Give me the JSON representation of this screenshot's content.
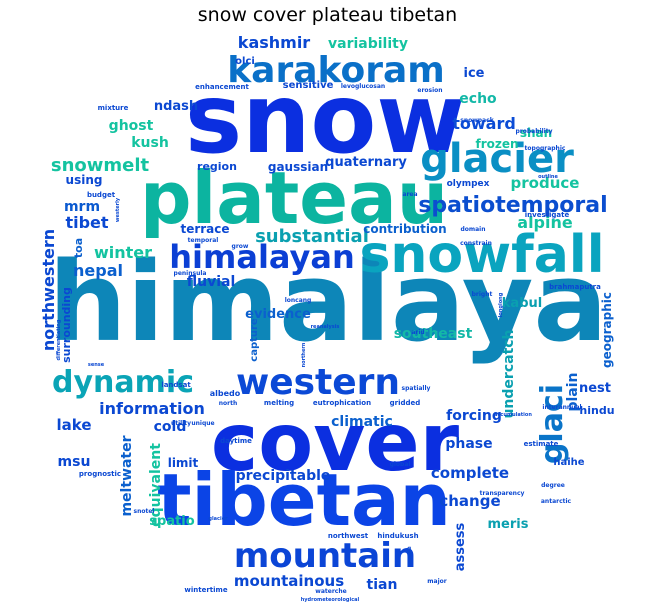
{
  "title": "snow cover plateau tibetan",
  "colors": {
    "blue": "#0b2fe0",
    "teal": "#0fa0a8",
    "green": "#17c79a",
    "mid": "#1a7fcc",
    "light": "#1bd690"
  },
  "words": [
    {
      "text": "snow",
      "color": "#0b2fe0"
    },
    {
      "text": "himalaya",
      "color": "#0d86b8"
    },
    {
      "text": "plateau",
      "color": "#0cb4a0"
    },
    {
      "text": "cover",
      "color": "#0b2fe0"
    },
    {
      "text": "tibetan",
      "color": "#0b44e6"
    },
    {
      "text": "snowfall",
      "color": "#0aa4bf"
    },
    {
      "text": "glacier",
      "color": "#0a8fc4"
    },
    {
      "text": "karakoram",
      "color": "#0a70c8"
    },
    {
      "text": "western",
      "color": "#0b49d6"
    },
    {
      "text": "himalayan",
      "color": "#0b3fd4"
    },
    {
      "text": "dynamic",
      "color": "#0aa4b6"
    },
    {
      "text": "mountain",
      "color": "#0b45d6"
    },
    {
      "text": "glaci",
      "color": "#0a74c8"
    },
    {
      "text": "spatiotemporal",
      "color": "#0b4ecf"
    },
    {
      "text": "substantial",
      "color": "#0aa0b0"
    },
    {
      "text": "kashmir",
      "color": "#0b48d2"
    },
    {
      "text": "variability",
      "color": "#14c3a0"
    },
    {
      "text": "snowmelt",
      "color": "#14c3a0"
    },
    {
      "text": "toward",
      "color": "#0b4cd6"
    },
    {
      "text": "information",
      "color": "#0b48d2"
    },
    {
      "text": "southeast",
      "color": "#13b8a7"
    },
    {
      "text": "alpine",
      "color": "#14c3a0"
    },
    {
      "text": "produce",
      "color": "#14c3a0"
    },
    {
      "text": "nepal",
      "color": "#0b60ce"
    },
    {
      "text": "fluvial",
      "color": "#0b48d2"
    },
    {
      "text": "winter",
      "color": "#14c3a0"
    },
    {
      "text": "tibet",
      "color": "#0b48d2"
    },
    {
      "text": "mrm",
      "color": "#0b5ad0"
    },
    {
      "text": "using",
      "color": "#0b48d2"
    },
    {
      "text": "ghost",
      "color": "#14c3a0"
    },
    {
      "text": "kush",
      "color": "#14c3a0"
    },
    {
      "text": "ndash",
      "color": "#0b48d2"
    },
    {
      "text": "echo",
      "color": "#13b8a7"
    },
    {
      "text": "ice",
      "color": "#0b48d2"
    },
    {
      "text": "frozen",
      "color": "#14c3a0"
    },
    {
      "text": "shan",
      "color": "#14c3a0"
    },
    {
      "text": "quaternary",
      "color": "#0b48d2"
    },
    {
      "text": "gaussian",
      "color": "#0b48d2"
    },
    {
      "text": "region",
      "color": "#0b48d2"
    },
    {
      "text": "contribution",
      "color": "#0b60ce"
    },
    {
      "text": "evidence",
      "color": "#0b60ce"
    },
    {
      "text": "terrace",
      "color": "#0b48d2"
    },
    {
      "text": "kabul",
      "color": "#0aa0b0"
    },
    {
      "text": "northwestern",
      "color": "#0b48d2"
    },
    {
      "text": "surrounding",
      "color": "#0b48d2"
    },
    {
      "text": "toa",
      "color": "#0b60ce"
    },
    {
      "text": "lake",
      "color": "#0b48d2"
    },
    {
      "text": "msu",
      "color": "#0b48d2"
    },
    {
      "text": "cold",
      "color": "#0b48d2"
    },
    {
      "text": "equivalent",
      "color": "#14c3a0"
    },
    {
      "text": "meltwater",
      "color": "#0b60ce"
    },
    {
      "text": "limit",
      "color": "#0b48d2"
    },
    {
      "text": "precipitable",
      "color": "#0b48d2"
    },
    {
      "text": "climatic",
      "color": "#0b60ce"
    },
    {
      "text": "complete",
      "color": "#0b48d2"
    },
    {
      "text": "change",
      "color": "#0b48d2"
    },
    {
      "text": "phase",
      "color": "#0b48d2"
    },
    {
      "text": "forcing",
      "color": "#0b48d2"
    },
    {
      "text": "undercatch",
      "color": "#0aa0b0"
    },
    {
      "text": "plain",
      "color": "#0b60ce"
    },
    {
      "text": "nest",
      "color": "#0b48d2"
    },
    {
      "text": "hindu",
      "color": "#0b48d2"
    },
    {
      "text": "geographic",
      "color": "#0b60ce"
    },
    {
      "text": "assess",
      "color": "#0b48d2"
    },
    {
      "text": "meris",
      "color": "#0aa0b0"
    },
    {
      "text": "spatio",
      "color": "#14c3a0"
    },
    {
      "text": "mountainous",
      "color": "#0b48d2"
    },
    {
      "text": "tian",
      "color": "#0b48d2"
    },
    {
      "text": "olci",
      "color": "#0b48d2"
    },
    {
      "text": "sensitive",
      "color": "#0b48d2"
    },
    {
      "text": "capture",
      "color": "#0b60ce"
    },
    {
      "text": "haihe",
      "color": "#0b48d2"
    },
    {
      "text": "estimate",
      "color": "#0b48d2"
    },
    {
      "text": "brahmaputra",
      "color": "#0b48d2"
    },
    {
      "text": "investigate",
      "color": "#0b48d2"
    },
    {
      "text": "olympex",
      "color": "#0b48d2"
    },
    {
      "text": "albedo",
      "color": "#0b48d2"
    },
    {
      "text": "landsat",
      "color": "#0b48d2"
    },
    {
      "text": "north",
      "color": "#0b48d2"
    },
    {
      "text": "melting",
      "color": "#0b48d2"
    },
    {
      "text": "eutrophication",
      "color": "#0b48d2"
    },
    {
      "text": "gridded",
      "color": "#0b48d2"
    },
    {
      "text": "daytime",
      "color": "#0b48d2"
    },
    {
      "text": "northwest",
      "color": "#0b48d2"
    },
    {
      "text": "hindukush",
      "color": "#0b48d2"
    },
    {
      "text": "snowpack",
      "color": "#0b48d2"
    },
    {
      "text": "enhancement",
      "color": "#0b48d2"
    },
    {
      "text": "levoglucosan",
      "color": "#0b48d2"
    },
    {
      "text": "probability",
      "color": "#0b48d2"
    },
    {
      "text": "topographic",
      "color": "#0b48d2"
    },
    {
      "text": "budget",
      "color": "#0b48d2"
    },
    {
      "text": "mixture",
      "color": "#0b48d2"
    },
    {
      "text": "westerly",
      "color": "#0b48d2"
    },
    {
      "text": "domain",
      "color": "#0b48d2"
    },
    {
      "text": "constrain",
      "color": "#0b48d2"
    },
    {
      "text": "grow",
      "color": "#0b48d2"
    },
    {
      "text": "temporal",
      "color": "#0b48d2"
    },
    {
      "text": "peninsula",
      "color": "#0b48d2"
    },
    {
      "text": "loncang",
      "color": "#0b48d2"
    },
    {
      "text": "bright",
      "color": "#0b48d2"
    },
    {
      "text": "arid",
      "color": "#0b48d2"
    },
    {
      "text": "longlong",
      "color": "#0b48d2"
    },
    {
      "text": "reanalysis",
      "color": "#0b48d2"
    },
    {
      "text": "northern",
      "color": "#0b48d2"
    },
    {
      "text": "spatially",
      "color": "#0b48d2"
    },
    {
      "text": "interannual",
      "color": "#0b48d2"
    },
    {
      "text": "accumulation",
      "color": "#0b48d2"
    },
    {
      "text": "transparency",
      "color": "#0b48d2"
    },
    {
      "text": "degree",
      "color": "#0b48d2"
    },
    {
      "text": "antarctic",
      "color": "#0b48d2"
    },
    {
      "text": "global",
      "color": "#0b48d2"
    },
    {
      "text": "snotel",
      "color": "#0b48d2"
    },
    {
      "text": "prognostic",
      "color": "#0b48d2"
    },
    {
      "text": "utility",
      "color": "#0b48d2"
    },
    {
      "text": "unique",
      "color": "#0b48d2"
    },
    {
      "text": "wintertime",
      "color": "#0b48d2"
    },
    {
      "text": "waterche",
      "color": "#0b48d2"
    },
    {
      "text": "hydrometeorological",
      "color": "#0b48d2"
    },
    {
      "text": "major",
      "color": "#0b48d2"
    },
    {
      "text": "cause",
      "color": "#0b48d2"
    },
    {
      "text": "sense",
      "color": "#0b48d2"
    },
    {
      "text": "differentiating",
      "color": "#0b48d2"
    },
    {
      "text": "glacier",
      "color": "#0b48d2"
    },
    {
      "text": "erosion",
      "color": "#0b48d2"
    },
    {
      "text": "outline",
      "color": "#0b48d2"
    },
    {
      "text": "area",
      "color": "#0b48d2"
    }
  ]
}
